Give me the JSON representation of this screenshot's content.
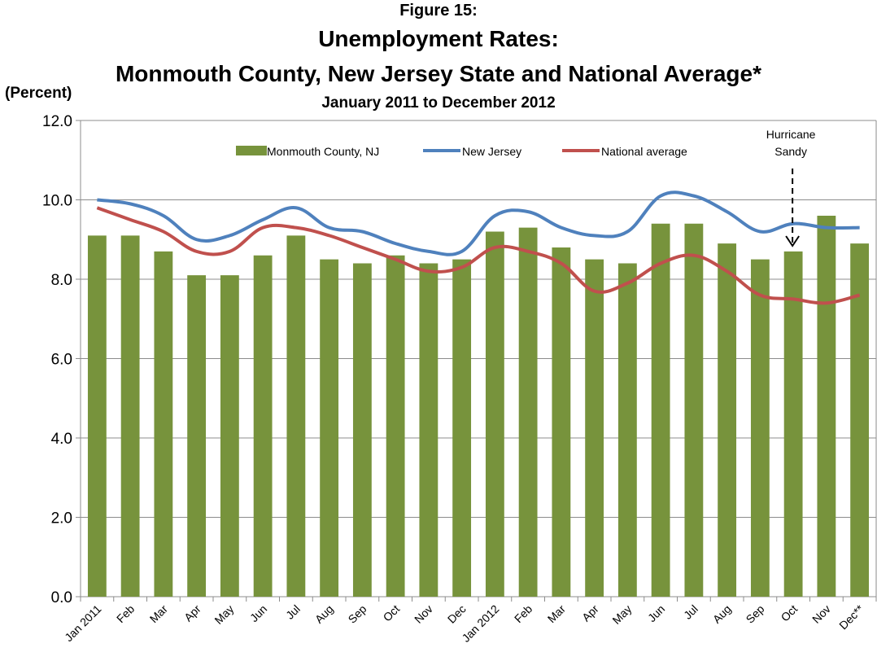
{
  "chart_data": {
    "type": "bar",
    "figure_label": "Figure 15:",
    "title_line1": "Unemployment Rates:",
    "title_line2": "Monmouth County, New Jersey State and National Average*",
    "subtitle": "January 2011 to December 2012",
    "ylabel": "(Percent)",
    "xlabel": "",
    "ylim": [
      0,
      12
    ],
    "yticks": [
      "0.0",
      "2.0",
      "4.0",
      "6.0",
      "8.0",
      "10.0",
      "12.0"
    ],
    "grid": true,
    "legend_position": "top",
    "categories": [
      "Jan 2011",
      "Feb",
      "Mar",
      "Apr",
      "May",
      "Jun",
      "Jul",
      "Aug",
      "Sep",
      "Oct",
      "Nov",
      "Dec",
      "Jan 2012",
      "Feb",
      "Mar",
      "Apr",
      "May",
      "Jun",
      "Jul",
      "Aug",
      "Sep",
      "Oct",
      "Nov",
      "Dec**"
    ],
    "series": [
      {
        "name": "Monmouth County,  NJ",
        "kind": "bar",
        "color": "#77933C",
        "values": [
          9.1,
          9.1,
          8.7,
          8.1,
          8.1,
          8.6,
          9.1,
          8.5,
          8.4,
          8.6,
          8.4,
          8.5,
          9.2,
          9.3,
          8.8,
          8.5,
          8.4,
          9.4,
          9.4,
          8.9,
          8.5,
          8.7,
          9.6,
          8.9
        ]
      },
      {
        "name": "New Jersey",
        "kind": "line",
        "color": "#4F81BD",
        "values": [
          10.0,
          9.9,
          9.6,
          9.0,
          9.1,
          9.5,
          9.8,
          9.3,
          9.2,
          8.9,
          8.7,
          8.7,
          9.6,
          9.7,
          9.3,
          9.1,
          9.2,
          10.1,
          10.1,
          9.7,
          9.2,
          9.4,
          9.3,
          9.3
        ]
      },
      {
        "name": "National average",
        "kind": "line",
        "color": "#C0504D",
        "values": [
          9.8,
          9.5,
          9.2,
          8.7,
          8.7,
          9.3,
          9.3,
          9.1,
          8.8,
          8.5,
          8.2,
          8.3,
          8.8,
          8.7,
          8.4,
          7.7,
          7.9,
          8.4,
          8.6,
          8.2,
          7.6,
          7.5,
          7.4,
          7.6
        ]
      }
    ],
    "annotations": [
      {
        "text_line1": "Hurricane",
        "text_line2": "Sandy",
        "category_index": 21,
        "style": "dashed-arrow-down"
      }
    ]
  }
}
